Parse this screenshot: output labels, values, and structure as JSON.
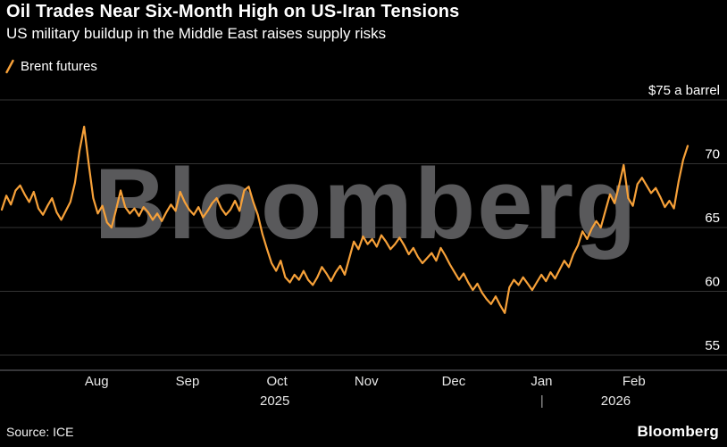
{
  "watermark": "Bloomberg",
  "footer": {
    "source": "Source: ICE",
    "brand": "Bloomberg"
  },
  "colors": {
    "background": "#000000",
    "text": "#ffffff",
    "line": "#f7a139",
    "grid": "#333333",
    "axis": "#56575b",
    "watermark": "#59595b",
    "tick_text": "#ffffff",
    "month_text": "#e8e8e8"
  },
  "chart_data": {
    "type": "line",
    "title": "Oil Trades Near Six-Month High on US-Iran Tensions",
    "subtitle": "US military buildup in the Middle East raises supply risks",
    "unit_label": "$75 a barrel",
    "xlabel": "",
    "ylabel": "",
    "ylim": [
      53.8,
      76.2
    ],
    "yticks": [
      55,
      60,
      65,
      70
    ],
    "ytick_top": 75,
    "grid": true,
    "legend_position": "top-left",
    "x_months": [
      {
        "label": "Aug",
        "pos": 0.133
      },
      {
        "label": "Sep",
        "pos": 0.258
      },
      {
        "label": "Oct",
        "pos": 0.381
      },
      {
        "label": "Nov",
        "pos": 0.504
      },
      {
        "label": "Dec",
        "pos": 0.624
      },
      {
        "label": "Jan",
        "pos": 0.745
      },
      {
        "label": "Feb",
        "pos": 0.872
      }
    ],
    "x_years": [
      {
        "label": "2025",
        "pos": 0.378
      },
      {
        "label": "2026",
        "pos": 0.847
      }
    ],
    "year_divider_pos": 0.7455,
    "series": [
      {
        "name": "Brent futures",
        "color": "#f7a139",
        "values": [
          66.4,
          67.5,
          66.8,
          67.9,
          68.3,
          67.6,
          67.0,
          67.8,
          66.5,
          66.0,
          66.7,
          67.3,
          66.2,
          65.6,
          66.3,
          67.0,
          68.5,
          71.0,
          72.9,
          70.0,
          67.3,
          66.1,
          66.7,
          65.4,
          65.0,
          66.4,
          67.9,
          66.6,
          66.1,
          66.5,
          65.9,
          66.6,
          66.2,
          65.6,
          66.1,
          65.5,
          66.2,
          66.8,
          66.3,
          67.8,
          67.0,
          66.4,
          66.0,
          66.6,
          65.8,
          66.3,
          66.9,
          67.3,
          66.5,
          66.0,
          66.4,
          67.1,
          66.3,
          67.9,
          68.2,
          67.0,
          66.0,
          64.5,
          63.3,
          62.2,
          61.6,
          62.4,
          61.1,
          60.7,
          61.3,
          60.9,
          61.6,
          60.9,
          60.5,
          61.1,
          61.9,
          61.4,
          60.8,
          61.5,
          62.0,
          61.3,
          62.6,
          63.9,
          63.3,
          64.3,
          63.7,
          64.1,
          63.5,
          64.4,
          63.9,
          63.3,
          63.7,
          64.2,
          63.6,
          62.9,
          63.4,
          62.7,
          62.2,
          62.6,
          63.0,
          62.4,
          63.4,
          62.8,
          62.1,
          61.5,
          60.9,
          61.4,
          60.7,
          60.1,
          60.6,
          59.9,
          59.4,
          59.0,
          59.6,
          58.9,
          58.3,
          60.3,
          60.9,
          60.5,
          61.1,
          60.6,
          60.1,
          60.7,
          61.3,
          60.8,
          61.5,
          61.0,
          61.7,
          62.4,
          61.9,
          62.9,
          63.6,
          64.7,
          64.1,
          64.9,
          65.5,
          65.0,
          66.3,
          67.6,
          66.9,
          68.3,
          69.9,
          67.3,
          66.7,
          68.4,
          68.9,
          68.3,
          67.7,
          68.1,
          67.4,
          66.6,
          67.1,
          66.5,
          68.6,
          70.3,
          71.4
        ]
      }
    ]
  }
}
